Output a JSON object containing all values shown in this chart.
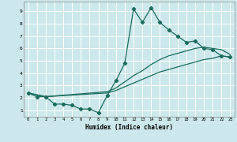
{
  "background_color": "#cce8ec",
  "grid_color": "#ffffff",
  "line_color": "#1a6b5e",
  "line_width": 0.9,
  "marker": "D",
  "marker_size": 2.2,
  "xlabel": "Humidex (Indice chaleur)",
  "xlim": [
    -0.5,
    23.5
  ],
  "ylim": [
    0.5,
    9.8
  ],
  "xticks": [
    0,
    1,
    2,
    3,
    4,
    5,
    6,
    7,
    8,
    9,
    10,
    11,
    12,
    13,
    14,
    15,
    16,
    17,
    18,
    19,
    20,
    21,
    22,
    23
  ],
  "yticks": [
    1,
    2,
    3,
    4,
    5,
    6,
    7,
    8,
    9
  ],
  "series1_x": [
    0,
    1,
    2,
    3,
    4,
    5,
    6,
    7,
    8,
    9,
    10,
    11,
    12,
    13,
    14,
    15,
    16,
    17,
    18,
    19,
    20,
    21,
    22,
    23
  ],
  "series1_y": [
    2.4,
    2.1,
    2.1,
    1.5,
    1.5,
    1.4,
    1.1,
    1.1,
    0.8,
    2.2,
    3.4,
    4.8,
    9.2,
    8.1,
    9.3,
    8.1,
    7.5,
    7.0,
    6.5,
    6.6,
    6.0,
    5.9,
    5.4,
    5.3
  ],
  "series2_x": [
    0,
    2,
    9,
    10,
    11,
    12,
    13,
    14,
    15,
    16,
    17,
    18,
    19,
    20,
    21,
    22,
    23
  ],
  "series2_y": [
    2.4,
    2.1,
    2.5,
    2.8,
    3.3,
    3.8,
    4.2,
    4.7,
    5.1,
    5.4,
    5.6,
    5.8,
    6.0,
    6.1,
    6.0,
    5.9,
    5.5
  ],
  "series3_x": [
    0,
    2,
    9,
    10,
    11,
    12,
    13,
    14,
    15,
    16,
    17,
    18,
    19,
    20,
    21,
    22,
    23
  ],
  "series3_y": [
    2.4,
    2.1,
    2.4,
    2.6,
    2.9,
    3.2,
    3.5,
    3.8,
    4.1,
    4.3,
    4.5,
    4.7,
    4.9,
    5.1,
    5.2,
    5.4,
    5.3
  ]
}
